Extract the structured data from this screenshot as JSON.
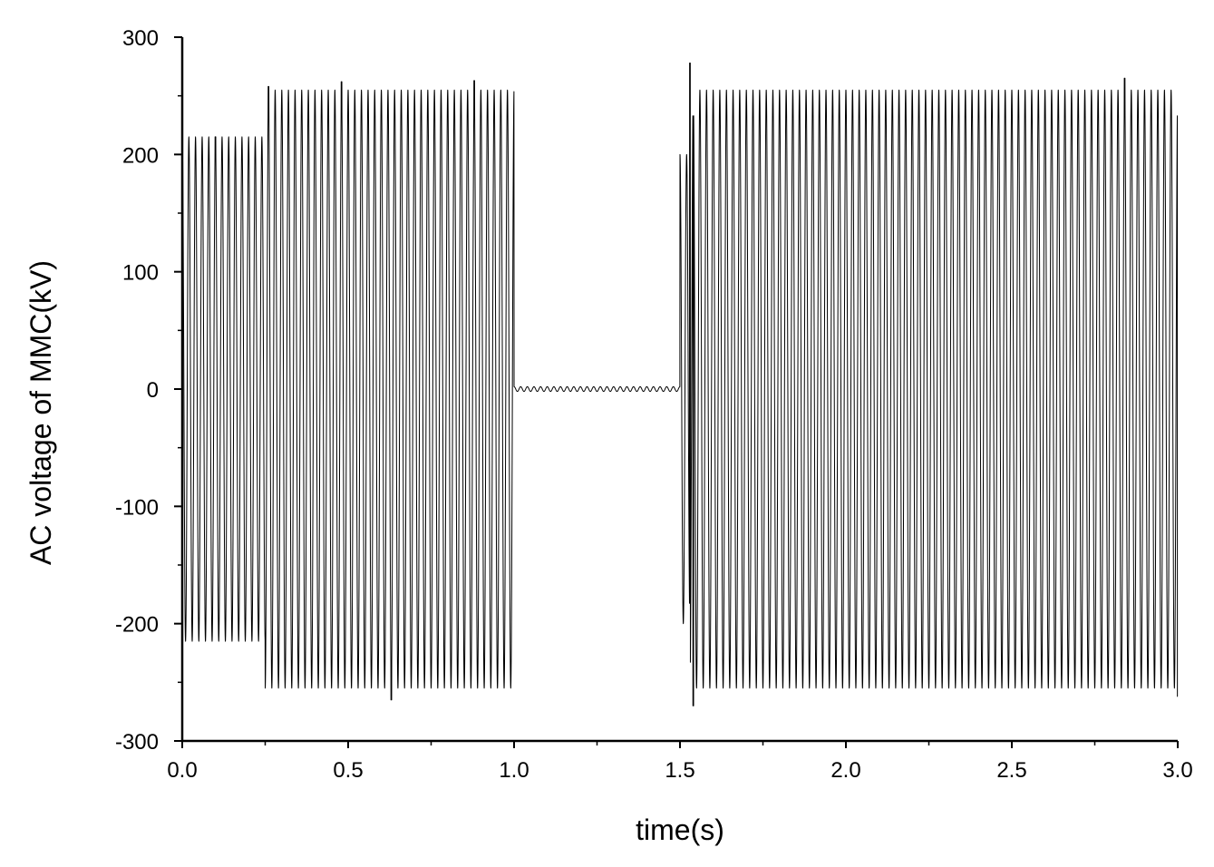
{
  "chart_data": {
    "type": "line",
    "title": "",
    "xlabel": "time(s)",
    "ylabel": "AC voltage of MMC(kV)",
    "xlim": [
      0,
      3.0
    ],
    "ylim": [
      -300,
      300
    ],
    "x_ticks": [
      "0.0",
      "0.5",
      "1.0",
      "1.5",
      "2.0",
      "2.5",
      "3.0"
    ],
    "y_ticks": [
      "300",
      "200",
      "100",
      "0",
      "-100",
      "-200",
      "-300"
    ],
    "grid": false,
    "legend": "none",
    "line_color": "#000000",
    "series": [
      {
        "signal": "sinusoid",
        "frequency_hz": 50,
        "segments": [
          {
            "t_start": 0.0,
            "t_end": 0.25,
            "amplitude_kv": 215
          },
          {
            "t_start": 0.25,
            "t_end": 1.0,
            "amplitude_kv": 255
          },
          {
            "t_start": 1.0,
            "t_end": 1.5,
            "amplitude_kv": 2
          },
          {
            "t_start": 1.5,
            "t_end": 1.53,
            "amplitude_kv": 200
          },
          {
            "t_start": 1.53,
            "t_end": 3.0,
            "amplitude_kv": 255
          }
        ],
        "peak_values_kv": [
          {
            "t": 0.0,
            "value": 216
          },
          {
            "t": 0.1,
            "value": 215
          },
          {
            "t": 0.26,
            "value": 258
          },
          {
            "t": 0.48,
            "value": 262
          },
          {
            "t": 0.63,
            "value": -265
          },
          {
            "t": 0.88,
            "value": 263
          },
          {
            "t": 1.53,
            "value": 278
          },
          {
            "t": 1.54,
            "value": -270
          },
          {
            "t": 2.84,
            "value": 265
          },
          {
            "t": 3.0,
            "value": -262
          }
        ]
      }
    ]
  }
}
